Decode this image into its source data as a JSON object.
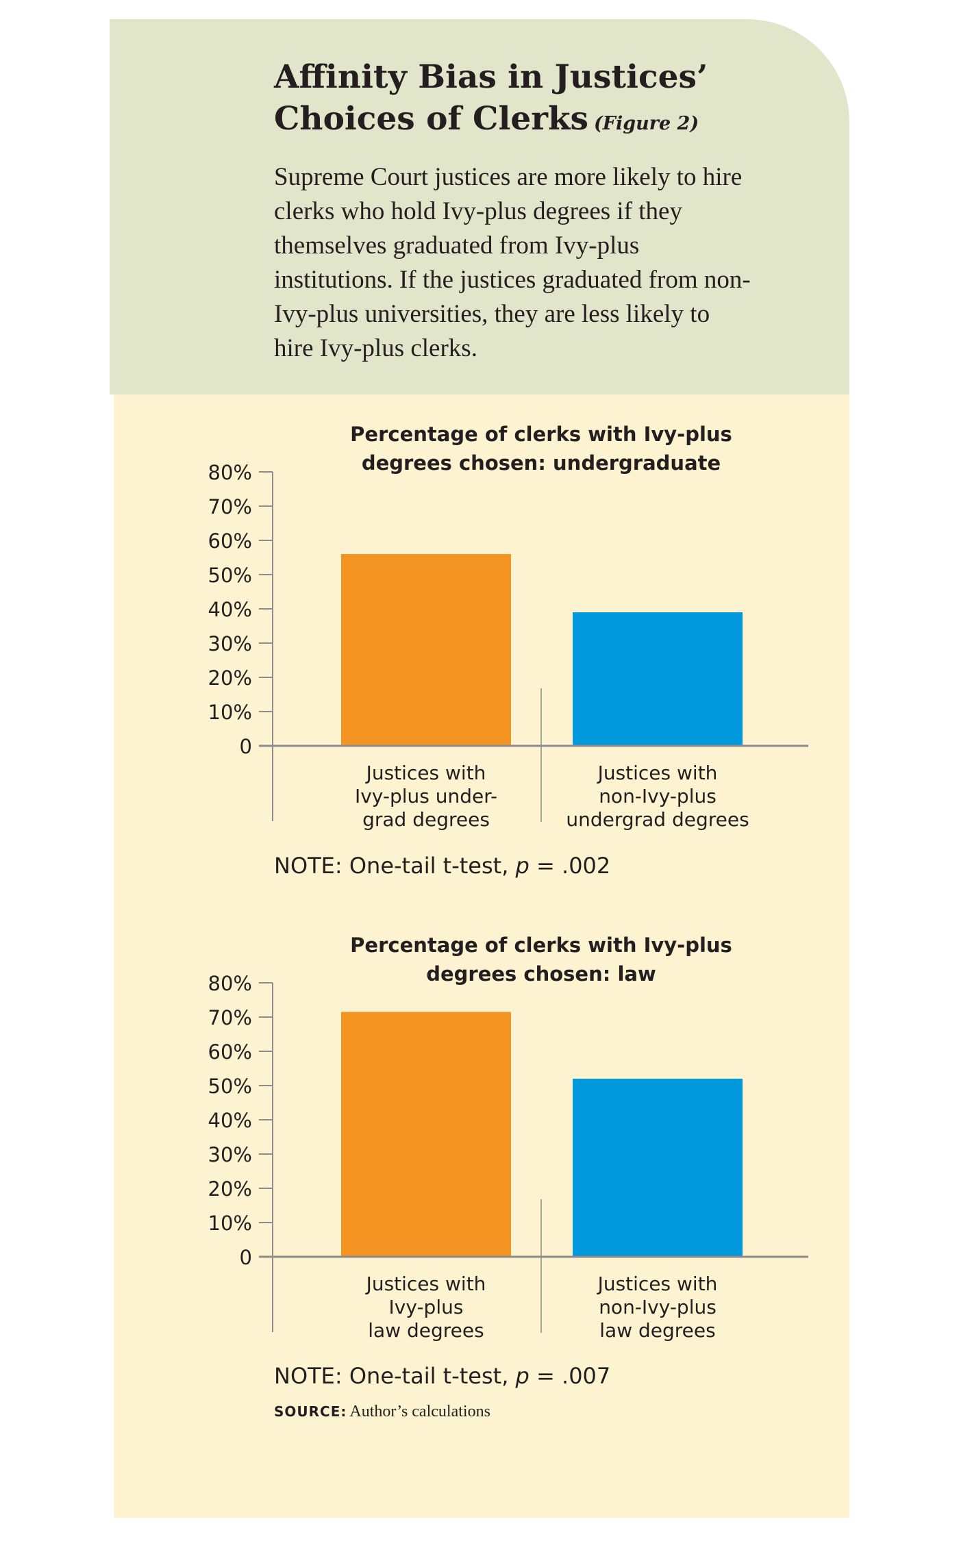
{
  "header": {
    "title_line1": "Affinity Bias in Justices’",
    "title_line2": "Choices of Clerks",
    "figure_label": "(Figure 2)",
    "description": "Supreme Court justices are more likely to hire clerks who hold Ivy-plus degrees if they themselves graduated from Ivy-plus institutions. If the justices graduated from non-Ivy-plus universities, they are less likely to hire Ivy-plus clerks."
  },
  "colors": {
    "ivy": "#f39322",
    "non_ivy": "#0099dc",
    "axis": "#8c8c8c"
  },
  "chart_data": [
    {
      "type": "bar",
      "title_lines": [
        "Percentage of clerks with Ivy-plus",
        "degrees chosen: undergraduate"
      ],
      "categories": [
        [
          "Justices with",
          "Ivy-plus under-",
          "grad degrees"
        ],
        [
          "Justices with",
          "non-Ivy-plus",
          "undergrad degrees"
        ]
      ],
      "values": [
        56,
        39
      ],
      "value_unit": "%",
      "ylim": [
        0,
        80
      ],
      "yticks": [
        "0",
        "10%",
        "20%",
        "30%",
        "40%",
        "50%",
        "60%",
        "70%",
        "80%"
      ],
      "grid": false,
      "note_prefix": "NOTE: One-tail t-test, ",
      "note_p": "p",
      "note_suffix": " = .002"
    },
    {
      "type": "bar",
      "title_lines": [
        "Percentage of clerks with Ivy-plus",
        "degrees chosen: law"
      ],
      "categories": [
        [
          "Justices with",
          "Ivy-plus",
          "law degrees"
        ],
        [
          "Justices with",
          "non-Ivy-plus",
          "law degrees"
        ]
      ],
      "values": [
        71.5,
        52
      ],
      "value_unit": "%",
      "ylim": [
        0,
        80
      ],
      "yticks": [
        "0",
        "10%",
        "20%",
        "30%",
        "40%",
        "50%",
        "60%",
        "70%",
        "80%"
      ],
      "grid": false,
      "note_prefix": "NOTE: One-tail t-test, ",
      "note_p": "p",
      "note_suffix": " = .007"
    }
  ],
  "source": {
    "label": "SOURCE:",
    "text": "Author’s calculations"
  }
}
